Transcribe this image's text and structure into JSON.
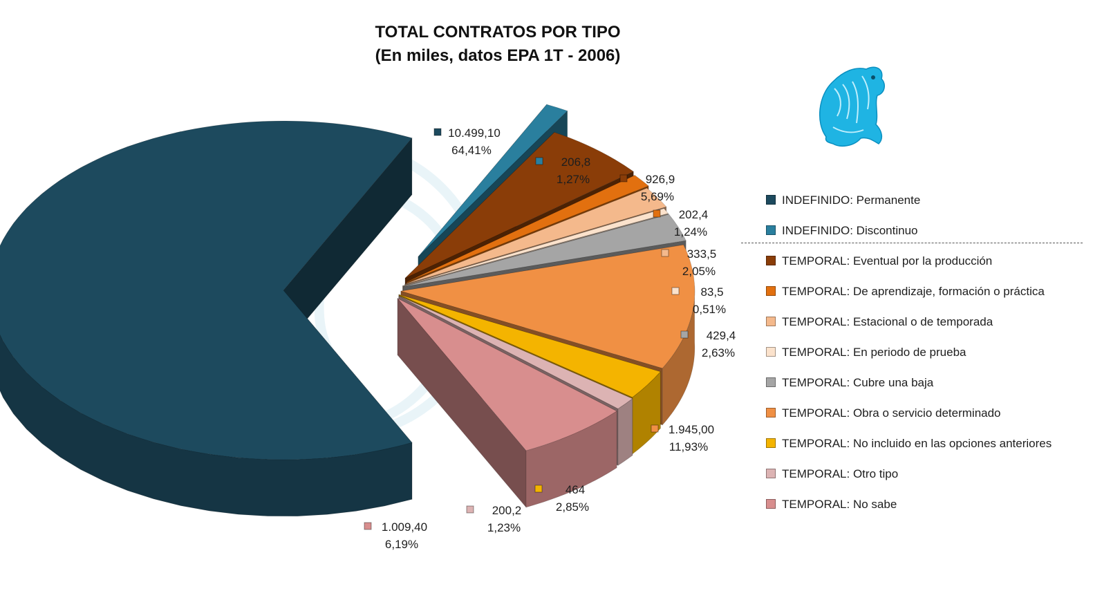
{
  "title_line1": "TOTAL CONTRATOS POR TIPO",
  "title_line2": "(En miles, datos EPA 1T - 2006)",
  "legend_items": [
    {
      "label": "INDEFINIDO: Permanente",
      "color": "#1d4a5e"
    },
    {
      "label": "INDEFINIDO: Discontinuo",
      "color": "#2a7f9e"
    },
    {
      "label": "TEMPORAL: Eventual por la producción",
      "color": "#8a3d08"
    },
    {
      "label": "TEMPORAL: De aprendizaje, formación o práctica",
      "color": "#e2700f"
    },
    {
      "label": "TEMPORAL: Estacional o de temporada",
      "color": "#f4b98c"
    },
    {
      "label": "TEMPORAL: En periodo de prueba",
      "color": "#fbe2cc"
    },
    {
      "label": "TEMPORAL: Cubre una baja",
      "color": "#a5a5a5"
    },
    {
      "label": "TEMPORAL: Obra o servicio determinado",
      "color": "#f09044"
    },
    {
      "label": "TEMPORAL: No incluido en las opciones anteriores",
      "color": "#f4b400"
    },
    {
      "label": "TEMPORAL: Otro tipo",
      "color": "#dcb3b3"
    },
    {
      "label": "TEMPORAL: No sabe",
      "color": "#d88e8e"
    }
  ],
  "chart_data": {
    "type": "pie",
    "title": "TOTAL CONTRATOS POR TIPO",
    "subtitle": "(En miles, datos EPA 1T - 2006)",
    "categories": [
      "INDEFINIDO: Permanente",
      "INDEFINIDO: Discontinuo",
      "TEMPORAL: Eventual por la producción",
      "TEMPORAL: De aprendizaje, formación o práctica",
      "TEMPORAL: Estacional o de temporada",
      "TEMPORAL: En periodo de prueba",
      "TEMPORAL: Cubre una baja",
      "TEMPORAL: Obra o servicio determinado",
      "TEMPORAL: No incluido en las opciones anteriores",
      "TEMPORAL: Otro tipo",
      "TEMPORAL: No sabe"
    ],
    "values": [
      10499.1,
      206.8,
      926.9,
      202.4,
      333.5,
      83.5,
      429.4,
      1945.0,
      464,
      200.2,
      1009.4
    ],
    "value_labels": [
      "10.499,10",
      "206,8",
      "926,9",
      "202,4",
      "333,5",
      "83,5",
      "429,4",
      "1.945,00",
      "464",
      "200,2",
      "1.009,40"
    ],
    "percent_labels": [
      "64,41%",
      "1,27%",
      "5,69%",
      "1,24%",
      "2,05%",
      "0,51%",
      "2,63%",
      "11,93%",
      "2,85%",
      "1,23%",
      "6,19%"
    ],
    "colors": [
      "#1d4a5e",
      "#2a7f9e",
      "#8a3d08",
      "#e2700f",
      "#f4b98c",
      "#fbe2cc",
      "#a5a5a5",
      "#f09044",
      "#f4b400",
      "#dcb3b3",
      "#d88e8e"
    ],
    "legend_position": "right",
    "style": "3d-exploded"
  }
}
